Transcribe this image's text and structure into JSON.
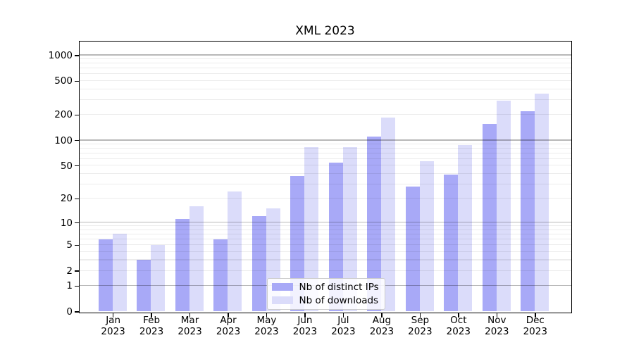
{
  "chart_data": {
    "type": "bar",
    "title": "XML 2023",
    "categories": [
      "Jan 2023",
      "Feb 2023",
      "Mar 2023",
      "Apr 2023",
      "May 2023",
      "Jun 2023",
      "Jul 2023",
      "Aug 2023",
      "Sep 2023",
      "Oct 2023",
      "Nov 2023",
      "Dec 2023"
    ],
    "series": [
      {
        "name": "Nb of distinct IPs",
        "color": "#a8a9f7",
        "values": [
          6,
          3,
          11,
          6,
          12,
          37,
          54,
          110,
          28,
          39,
          155,
          220
        ]
      },
      {
        "name": "Nb of downloads",
        "color": "#dbdcfa",
        "values": [
          7,
          5,
          16,
          24,
          15,
          83,
          83,
          183,
          56,
          88,
          290,
          350
        ]
      }
    ],
    "yscale": "log10(value+1)",
    "ylim": [
      0,
      1000
    ],
    "ytick_labels": [
      "0",
      "1",
      "2",
      "5",
      "10",
      "20",
      "50",
      "100",
      "200",
      "500",
      "1000"
    ],
    "ytick_values": [
      0,
      1,
      2,
      5,
      10,
      20,
      50,
      100,
      200,
      500,
      1000
    ],
    "grid_major_values": [
      1,
      10,
      100,
      1000
    ],
    "grid_minor_values": [
      2,
      3,
      4,
      5,
      6,
      7,
      8,
      9,
      20,
      30,
      40,
      50,
      60,
      70,
      80,
      90,
      200,
      300,
      400,
      500,
      600,
      700,
      800,
      900
    ],
    "legend_position": "lower center",
    "grid": "on"
  }
}
